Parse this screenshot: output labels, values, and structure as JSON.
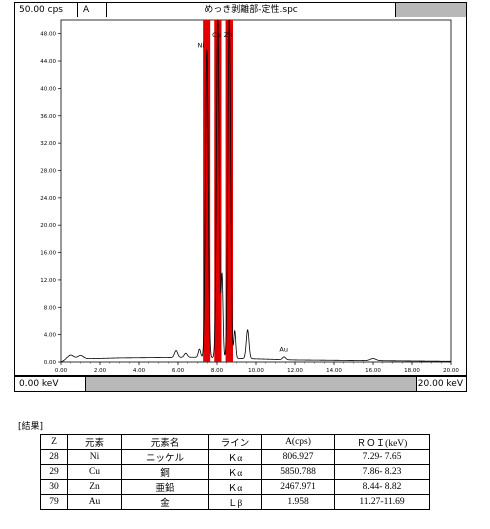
{
  "header": {
    "scale_label": "50.00 cps",
    "mode_label": "A",
    "file_name": "めっき剥離部-定性.spc"
  },
  "footer": {
    "x_min_label": "0.00 keV",
    "x_max_label": "20.00 keV"
  },
  "colors": {
    "roi": "#e00000",
    "spectrum": "#000000"
  },
  "chart_data": {
    "type": "line",
    "xlim": [
      0,
      20
    ],
    "ylim": [
      0,
      50
    ],
    "x_ticks": [
      "0.00",
      "2.00",
      "4.00",
      "6.00",
      "8.00",
      "10.00",
      "12.00",
      "14.00",
      "16.00",
      "18.00",
      "20.00"
    ],
    "y_ticks": [
      "0.00",
      "4.00",
      "8.00",
      "12.00",
      "16.00",
      "20.00",
      "24.00",
      "28.00",
      "32.00",
      "36.00",
      "40.00",
      "44.00",
      "48.00"
    ],
    "roi_bands": [
      {
        "element": "Ni",
        "x": [
          7.29,
          7.65
        ]
      },
      {
        "element": "Cu",
        "x": [
          7.86,
          8.23
        ]
      },
      {
        "element": "Zn",
        "x": [
          8.44,
          8.82
        ]
      }
    ],
    "peaks": [
      {
        "x": 0.5,
        "y": 0.6,
        "w": 0.15
      },
      {
        "x": 1.0,
        "y": 0.5,
        "w": 0.15
      },
      {
        "x": 5.9,
        "y": 1.0,
        "w": 0.08
      },
      {
        "x": 6.4,
        "y": 0.6,
        "w": 0.08
      },
      {
        "x": 7.1,
        "y": 1.2,
        "w": 0.06
      },
      {
        "x": 7.48,
        "y": 45.0,
        "w": 0.07
      },
      {
        "x": 8.04,
        "y": 50.0,
        "w": 0.07
      },
      {
        "x": 8.26,
        "y": 12.0,
        "w": 0.05
      },
      {
        "x": 8.63,
        "y": 50.0,
        "w": 0.07
      },
      {
        "x": 8.91,
        "y": 4.0,
        "w": 0.05
      },
      {
        "x": 9.57,
        "y": 4.2,
        "w": 0.07
      },
      {
        "x": 11.44,
        "y": 0.4,
        "w": 0.08
      },
      {
        "x": 16.0,
        "y": 0.3,
        "w": 0.15
      }
    ],
    "baseline": [
      {
        "x": 0.0,
        "y": 0.0
      },
      {
        "x": 0.3,
        "y": 0.4
      },
      {
        "x": 3.0,
        "y": 0.6
      },
      {
        "x": 7.0,
        "y": 0.7
      },
      {
        "x": 12.0,
        "y": 0.3
      },
      {
        "x": 20.0,
        "y": 0.1
      }
    ],
    "labels": [
      {
        "text": "Ni",
        "x": 7.0,
        "y": 46.0
      },
      {
        "text": "Cu",
        "x": 7.75,
        "y": 47.5
      },
      {
        "text": "Zn",
        "x": 8.35,
        "y": 47.5
      },
      {
        "text": "Au",
        "x": 11.2,
        "y": 1.5
      }
    ]
  },
  "results": {
    "title": "[結果]",
    "columns": [
      "Z",
      "元素",
      "元素名",
      "ライン",
      "A(cps)",
      "ＲＯＩ(keV)"
    ],
    "rows": [
      [
        "28",
        "Ni",
        "ニッケル",
        "Ｋα",
        "806.927",
        "7.29- 7.65"
      ],
      [
        "29",
        "Cu",
        "銅",
        "Ｋα",
        "5850.788",
        "7.86- 8.23"
      ],
      [
        "30",
        "Zn",
        "亜鉛",
        "Ｋα",
        "2467.971",
        "8.44- 8.82"
      ],
      [
        "79",
        "Au",
        "金",
        "Ｌβ",
        "1.958",
        "11.27-11.69"
      ]
    ]
  }
}
